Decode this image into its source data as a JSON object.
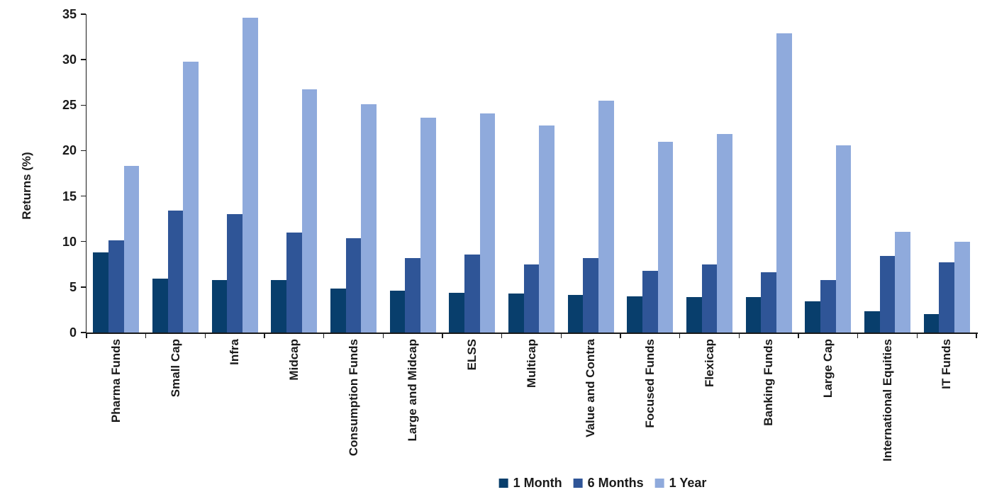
{
  "chart_data": {
    "type": "bar",
    "title": "",
    "xlabel": "",
    "ylabel": "Returns (%)",
    "ylim": [
      0,
      35
    ],
    "yticks": [
      0,
      5,
      10,
      15,
      20,
      25,
      30,
      35
    ],
    "grid": false,
    "legend_position": "bottom-center",
    "categories": [
      "Pharma Funds",
      "Small Cap",
      "Infra",
      "Midcap",
      "Consumption Funds",
      "Large and Midcap",
      "ELSS",
      "Multicap",
      "Value and Contra",
      "Focused Funds",
      "Flexicap",
      "Banking Funds",
      "Large Cap",
      "International Equities",
      "IT Funds"
    ],
    "series": [
      {
        "name": "1 Month",
        "color": "#083E6C",
        "values": [
          8.8,
          5.9,
          5.8,
          5.8,
          4.8,
          4.6,
          4.4,
          4.3,
          4.1,
          4.0,
          3.9,
          3.9,
          3.4,
          2.3,
          2.0
        ]
      },
      {
        "name": "6 Months",
        "color": "#2F5597",
        "values": [
          10.1,
          13.4,
          13.0,
          11.0,
          10.4,
          8.2,
          8.6,
          7.5,
          8.2,
          6.8,
          7.5,
          6.6,
          5.8,
          8.4,
          7.7
        ]
      },
      {
        "name": "1 Year",
        "color": "#8FAADC",
        "values": [
          18.3,
          29.8,
          34.6,
          26.7,
          25.1,
          23.6,
          24.1,
          22.8,
          25.5,
          21.0,
          21.8,
          32.9,
          20.6,
          11.1,
          10.0
        ]
      }
    ],
    "axis_color": "#1a1a1a",
    "text_color": "#1a1a1a",
    "background_color": "#ffffff"
  }
}
